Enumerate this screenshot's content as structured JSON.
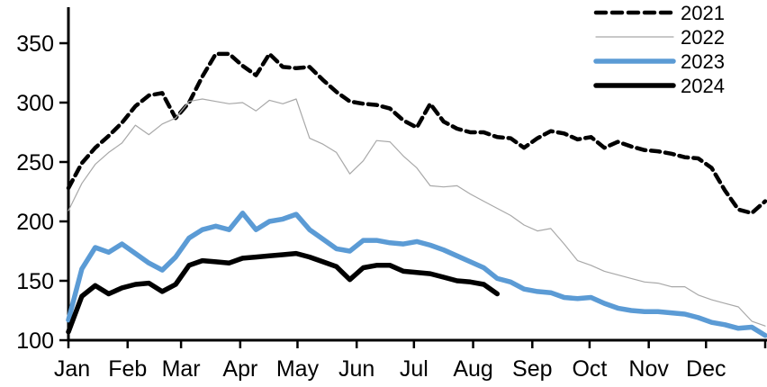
{
  "chart_data": {
    "type": "line",
    "title": "",
    "xlabel": "",
    "ylabel": "",
    "x_axis": {
      "tick_labels": [
        "Jan",
        "Feb",
        "Mar",
        "Apr",
        "May",
        "Jun",
        "Jul",
        "Aug",
        "Sep",
        "Oct",
        "Nov",
        "Dec"
      ],
      "month_start_days": [
        0,
        31,
        59,
        90,
        120,
        151,
        181,
        212,
        243,
        273,
        304,
        334,
        365
      ],
      "data_resolution": "weekly"
    },
    "y_axis": {
      "ticks": [
        100,
        150,
        200,
        250,
        300,
        350
      ],
      "tick_labels": [
        "100",
        "150",
        "200",
        "250",
        "300",
        "350"
      ],
      "range": [
        100,
        360
      ],
      "grid": false
    },
    "legend": {
      "position": "top-right",
      "entries": [
        "2021",
        "2022",
        "2023",
        "2024"
      ]
    },
    "series": [
      {
        "name": "2021",
        "color": "#000000",
        "style": "dashed",
        "width": 4.5,
        "values": [
          228,
          249,
          262,
          272,
          283,
          297,
          306,
          308,
          287,
          300,
          322,
          341,
          341,
          331,
          323,
          341,
          330,
          329,
          330,
          319,
          309,
          301,
          299,
          298,
          295,
          285,
          279,
          299,
          284,
          278,
          275,
          275,
          271,
          270,
          262,
          270,
          276,
          274,
          269,
          271,
          262,
          267,
          263,
          260,
          259,
          257,
          254,
          253,
          245,
          226,
          210,
          207,
          217
        ]
      },
      {
        "name": "2022",
        "color": "#a8a8a8",
        "style": "solid",
        "width": 1.2,
        "values": [
          209,
          232,
          248,
          258,
          266,
          281,
          273,
          282,
          287,
          301,
          303,
          301,
          299,
          300,
          293,
          302,
          299,
          303,
          270,
          265,
          258,
          240,
          251,
          268,
          267,
          255,
          245,
          230,
          229,
          230,
          223,
          217,
          211,
          205,
          197,
          192,
          194,
          181,
          167,
          163,
          158,
          155,
          152,
          149,
          148,
          145,
          145,
          138,
          134,
          131,
          128,
          116,
          112
        ]
      },
      {
        "name": "2023",
        "color": "#5b9bd5",
        "style": "solid",
        "width": 5.5,
        "values": [
          117,
          160,
          178,
          174,
          181,
          173,
          165,
          159,
          170,
          186,
          193,
          196,
          193,
          207,
          193,
          200,
          202,
          206,
          193,
          185,
          177,
          175,
          184,
          184,
          182,
          181,
          183,
          180,
          176,
          171,
          166,
          161,
          152,
          149,
          143,
          141,
          140,
          136,
          135,
          136,
          131,
          127,
          125,
          124,
          124,
          123,
          122,
          119,
          115,
          113,
          110,
          111,
          104
        ]
      },
      {
        "name": "2024",
        "color": "#000000",
        "style": "solid",
        "width": 5.5,
        "values": [
          107,
          137,
          146,
          139,
          144,
          147,
          148,
          141,
          147,
          163,
          167,
          166,
          165,
          169,
          170,
          171,
          172,
          173,
          170,
          166,
          162,
          151,
          161,
          163,
          163,
          158,
          157,
          156,
          153,
          150,
          149,
          147,
          139
        ]
      }
    ]
  },
  "colors": {
    "background": "#ffffff",
    "axis": "#000000",
    "accent_blue": "#5b9bd5",
    "gray_line": "#a8a8a8"
  }
}
